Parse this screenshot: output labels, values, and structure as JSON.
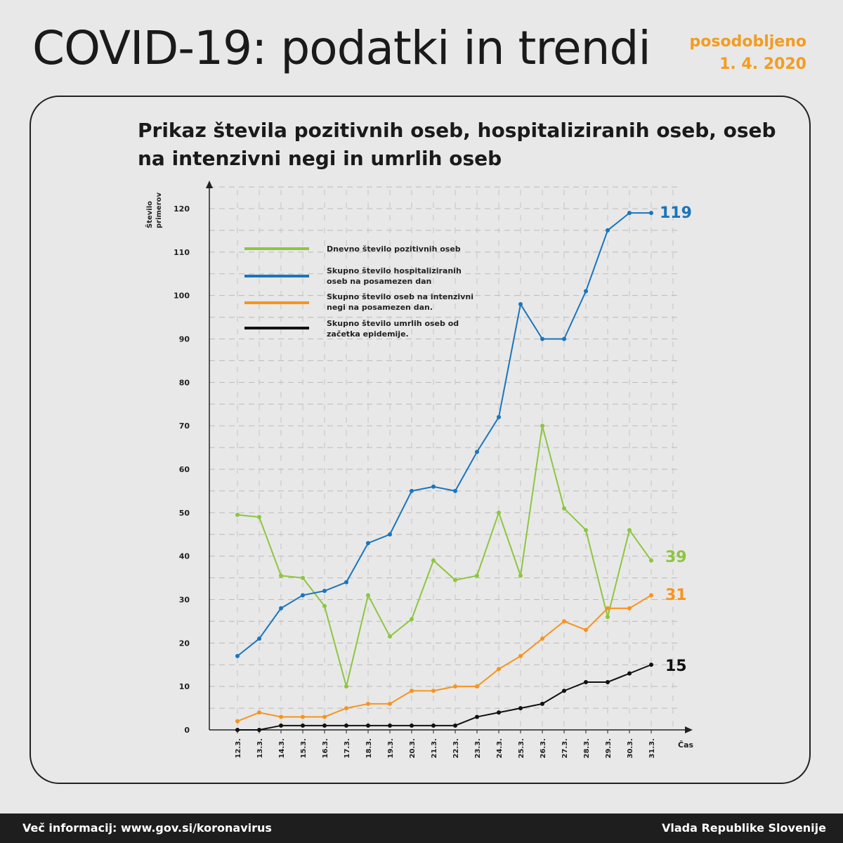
{
  "header": {
    "title": "COVID-19: podatki in trendi",
    "updated_label": "posodobljeno",
    "updated_date": "1. 4. 2020"
  },
  "footer": {
    "info": "Več informacij: www.gov.si/koronavirus",
    "org": "Vlada Republike Slovenije"
  },
  "chart_data": {
    "type": "line",
    "title": "Prikaz števila pozitivnih oseb, hospitaliziranih oseb, oseb na intenzivni negi in umrlih oseb",
    "title_lines": [
      "Prikaz števila pozitivnih oseb, hospitaliziranih oseb, oseb",
      "na intenzivni negi in umrlih oseb"
    ],
    "ylabel_lines": [
      "Število",
      "primerov"
    ],
    "xlabel": "Čas",
    "ylim": [
      0,
      120
    ],
    "yticks": [
      0,
      10,
      20,
      30,
      40,
      50,
      60,
      70,
      80,
      90,
      100,
      110,
      120
    ],
    "grid": true,
    "legend_position": "top-left",
    "categories": [
      "12.3.",
      "13.3.",
      "14.3.",
      "15.3.",
      "16.3.",
      "17.3.",
      "18.3.",
      "19.3.",
      "20.3.",
      "21.3.",
      "22.3.",
      "23.3.",
      "24.3.",
      "25.3.",
      "26.3.",
      "27.3.",
      "28.3.",
      "29.3.",
      "30.3.",
      "31.3."
    ],
    "series": [
      {
        "name": "Dnevno število pozitivnih oseb",
        "legend_lines": [
          "Dnevno število pozitivnih oseb"
        ],
        "color": "#8dc63f",
        "end_label": "39",
        "values": [
          49.5,
          49,
          35.5,
          35,
          28.5,
          10,
          31,
          21.5,
          25.5,
          39,
          34.5,
          35.5,
          50,
          35.5,
          70,
          51,
          46,
          26,
          46,
          39
        ]
      },
      {
        "name": "Skupno število hospitaliziranih oseb na posamezen dan",
        "legend_lines": [
          "Skupno število hospitaliziranih",
          "oseb na posamezen dan"
        ],
        "color": "#1a75bc",
        "end_label": "119",
        "values": [
          17,
          21,
          28,
          31,
          32,
          34,
          43,
          45,
          55,
          56,
          55,
          64,
          72,
          98,
          90,
          90,
          101,
          115,
          119,
          119
        ]
      },
      {
        "name": "Skupno število oseb na intenzivni negi na posamezen dan.",
        "legend_lines": [
          "Skupno število oseb na intenzivni",
          "negi na posamezen dan."
        ],
        "color": "#f7941d",
        "end_label": "31",
        "values": [
          2,
          4,
          3,
          3,
          3,
          5,
          6,
          6,
          9,
          9,
          10,
          10,
          14,
          17,
          21,
          25,
          23,
          28,
          28,
          31
        ]
      },
      {
        "name": "Skupno število umrlih oseb od začetka epidemije.",
        "legend_lines": [
          "Skupno število umrlih oseb od",
          "začetka epidemije."
        ],
        "color": "#111111",
        "end_label": "15",
        "values": [
          0,
          0,
          1,
          1,
          1,
          1,
          1,
          1,
          1,
          1,
          1,
          3,
          4,
          5,
          6,
          9,
          11,
          11,
          13,
          15
        ]
      }
    ]
  }
}
